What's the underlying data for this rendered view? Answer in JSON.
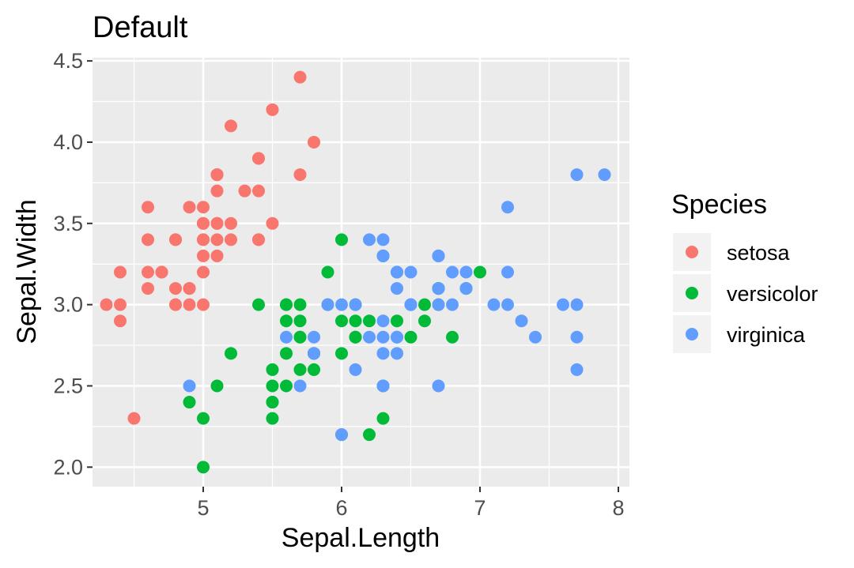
{
  "chart_data": {
    "type": "scatter",
    "title": "Default",
    "xlabel": "Sepal.Length",
    "ylabel": "Sepal.Width",
    "xlim": [
      4.2,
      8.08
    ],
    "ylim": [
      1.88,
      4.52
    ],
    "x_ticks": [
      "5",
      "6",
      "7",
      "8"
    ],
    "y_ticks": [
      "2.0",
      "2.5",
      "3.0",
      "3.5",
      "4.0",
      "4.5"
    ],
    "grid": true,
    "legend": {
      "title": "Species",
      "placement": "right",
      "labels": [
        "setosa",
        "versicolor",
        "virginica"
      ]
    },
    "series": [
      {
        "name": "setosa",
        "color": "#F8766D",
        "x": [
          5.1,
          4.9,
          4.7,
          4.6,
          5.0,
          5.4,
          4.6,
          5.0,
          4.4,
          4.9,
          5.4,
          4.8,
          4.8,
          4.3,
          5.8,
          5.7,
          5.4,
          5.1,
          5.7,
          5.1,
          5.4,
          5.1,
          4.6,
          5.1,
          4.8,
          5.0,
          5.0,
          5.2,
          5.2,
          4.7,
          4.8,
          5.4,
          5.2,
          5.5,
          4.9,
          5.0,
          5.5,
          4.9,
          4.4,
          5.1,
          5.0,
          4.5,
          4.4,
          5.0,
          5.1,
          4.8,
          5.1,
          4.6,
          5.3,
          5.0
        ],
        "y": [
          3.5,
          3.0,
          3.2,
          3.1,
          3.6,
          3.9,
          3.4,
          3.4,
          2.9,
          3.1,
          3.7,
          3.4,
          3.0,
          3.0,
          4.0,
          4.4,
          3.9,
          3.5,
          3.8,
          3.8,
          3.4,
          3.7,
          3.6,
          3.3,
          3.4,
          3.0,
          3.4,
          3.5,
          3.4,
          3.2,
          3.1,
          3.4,
          4.1,
          4.2,
          3.1,
          3.2,
          3.5,
          3.6,
          3.0,
          3.4,
          3.5,
          2.3,
          3.2,
          3.5,
          3.8,
          3.0,
          3.8,
          3.2,
          3.7,
          3.3
        ]
      },
      {
        "name": "versicolor",
        "color": "#00BA38",
        "x": [
          7.0,
          6.4,
          6.9,
          5.5,
          6.5,
          5.7,
          6.3,
          4.9,
          6.6,
          5.2,
          5.0,
          5.9,
          6.0,
          6.1,
          5.6,
          6.7,
          5.6,
          5.8,
          6.2,
          5.6,
          5.9,
          6.1,
          6.3,
          6.1,
          6.4,
          6.6,
          6.8,
          6.7,
          6.0,
          5.7,
          5.5,
          5.5,
          5.8,
          6.0,
          5.4,
          6.0,
          6.7,
          6.3,
          5.6,
          5.5,
          5.5,
          6.1,
          5.8,
          5.0,
          5.6,
          5.7,
          5.7,
          6.2,
          5.1,
          5.7
        ],
        "y": [
          3.2,
          3.2,
          3.1,
          2.3,
          2.8,
          2.8,
          3.3,
          2.4,
          2.9,
          2.7,
          2.0,
          3.0,
          2.2,
          2.9,
          2.9,
          3.1,
          3.0,
          2.7,
          2.2,
          2.5,
          3.2,
          2.8,
          2.5,
          2.8,
          2.9,
          3.0,
          2.8,
          3.0,
          2.9,
          2.6,
          2.4,
          2.4,
          2.7,
          2.7,
          3.0,
          3.4,
          3.1,
          2.3,
          3.0,
          2.5,
          2.6,
          3.0,
          2.6,
          2.3,
          2.7,
          3.0,
          2.9,
          2.9,
          2.5,
          2.8
        ]
      },
      {
        "name": "virginica",
        "color": "#619CFF",
        "x": [
          6.3,
          5.8,
          7.1,
          6.3,
          6.5,
          7.6,
          4.9,
          7.3,
          6.7,
          7.2,
          6.5,
          6.4,
          6.8,
          5.7,
          5.8,
          6.4,
          6.5,
          7.7,
          7.7,
          6.0,
          6.9,
          5.6,
          7.7,
          6.3,
          6.7,
          7.2,
          6.2,
          6.1,
          6.4,
          7.2,
          7.4,
          7.9,
          6.4,
          6.3,
          6.1,
          7.7,
          6.3,
          6.4,
          6.0,
          6.9,
          6.7,
          6.9,
          5.8,
          6.8,
          6.7,
          6.7,
          6.3,
          6.5,
          6.2,
          5.9
        ],
        "y": [
          3.3,
          2.7,
          3.0,
          2.9,
          3.0,
          3.0,
          2.5,
          2.9,
          2.5,
          3.6,
          3.2,
          2.7,
          3.0,
          2.5,
          2.8,
          3.2,
          3.0,
          3.8,
          2.6,
          2.2,
          3.2,
          2.8,
          2.8,
          2.7,
          3.3,
          3.2,
          2.8,
          3.0,
          2.8,
          3.0,
          2.8,
          3.8,
          2.8,
          2.8,
          2.6,
          3.0,
          3.4,
          3.1,
          3.0,
          3.1,
          3.1,
          3.1,
          2.7,
          3.2,
          3.3,
          3.0,
          2.5,
          3.0,
          3.4,
          3.0
        ]
      }
    ],
    "panel_background": "#EBEBEB",
    "grid_color": "#FFFFFF",
    "tick_color": "#333333"
  }
}
